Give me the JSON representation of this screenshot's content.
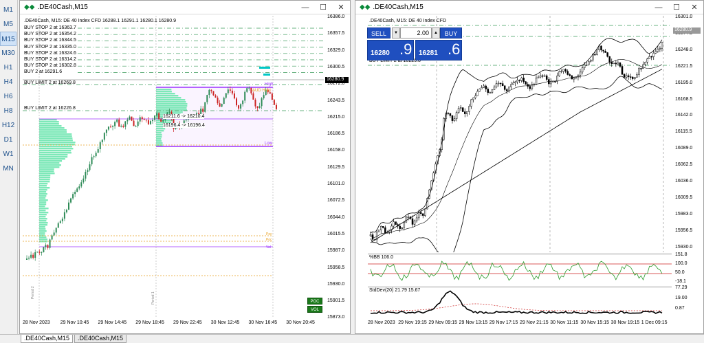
{
  "timeframes": [
    "M1",
    "M5",
    "M15",
    "M30",
    "H1",
    "H4",
    "H6",
    "H8",
    "H12",
    "D1",
    "W1",
    "MN"
  ],
  "active_timeframe": "M15",
  "left_chart": {
    "title": ".DE40Cash,M15",
    "info": ".DE40Cash, M15:  DE 40 Index CFD  16288.1 16291.1 16280.1 16280.9",
    "orders": [
      "BUY STOP 2 at 16363.7",
      "BUY STOP 2 at 16354.2",
      "BUY STOP 2 at 16344.5",
      "BUY STOP 2 at 16335.0",
      "BUY STOP 2 at 16324.6",
      "BUY STOP 2 at 16314.2",
      "BUY STOP 2 at 16302.8",
      "BUY 2 at 16291.6"
    ],
    "limit1": "BUY LIMIT 2 at 16269.8",
    "limit2": "BUY LIMIT 2 at 16226.8",
    "price_axis": [
      "16386.0",
      "16357.5",
      "16329.0",
      "16300.5",
      "16272.0",
      "16243.5",
      "16215.0",
      "16186.5",
      "16158.0",
      "16129.5",
      "16101.0",
      "16072.5",
      "16044.0",
      "16015.5",
      "15987.0",
      "15958.5",
      "15930.0",
      "15901.5",
      "15873.0"
    ],
    "price_marker": "16280.9",
    "time_axis": [
      "28 Nov 2023",
      "29 Nov 10:45",
      "29 Nov 14:45",
      "29 Nov 18:45",
      "29 Nov 22:45",
      "30 Nov 12:45",
      "30 Nov 16:45",
      "30 Nov 20:45"
    ],
    "annot1": "16211.6 -> 16210.4",
    "annot2": "16196.4 -> 16196.4",
    "poc_label": "POC",
    "vol_label": "VOL",
    "high_label": "High",
    "low_label": "Low",
    "aud_label": "AUD Hold",
    "side_labels": [
      "Period 2",
      "Period 1"
    ],
    "small_labels": [
      "Poc",
      "Poc",
      "Val"
    ]
  },
  "right_chart": {
    "title": ".DE40Cash,M15",
    "info": ".DE40Cash, M15:  DE 40 Index CFD",
    "sell_label": "SELL",
    "buy_label": "BUY",
    "lot": "2.00",
    "bid_small": "16280",
    "bid_big": ".9",
    "ask_small": "16281",
    "ask_big": ".6",
    "limit": "BUY LIMIT 2 at 16226.8",
    "price_axis": [
      "16301.0",
      "16274.5",
      "16248.0",
      "16221.5",
      "16195.0",
      "16168.5",
      "16142.0",
      "16115.5",
      "16089.0",
      "16062.5",
      "16036.0",
      "16009.5",
      "15983.0",
      "15956.5",
      "15930.0"
    ],
    "price_marker": "16280.9",
    "bb_label": "%BB 106.0",
    "bb_axis": [
      "151.8",
      "100.0",
      "50.0",
      "-18.1"
    ],
    "sd_label": "StdDev(20) 21.79 15.67",
    "sd_axis": [
      "77.29",
      "19.00",
      "0.87"
    ],
    "time_axis": [
      "28 Nov 2023",
      "29 Nov 19:15",
      "29 Nov 09:15",
      "29 Nov 13:15",
      "29 Nov 17:15",
      "29 Nov 21:15",
      "30 Nov 11:15",
      "30 Nov 15:15",
      "30 Nov 19:15",
      "1 Dec 09:15"
    ]
  },
  "tabs": [
    ".DE40Cash,M15",
    ".DE40Cash,M15"
  ],
  "colors": {
    "bull": "#2e8b57",
    "bear": "#cc2222",
    "purple": "#9b30ff",
    "cyan": "#00c8c8",
    "orange": "#e8a020",
    "trade_blue": "#1f4fbf"
  }
}
